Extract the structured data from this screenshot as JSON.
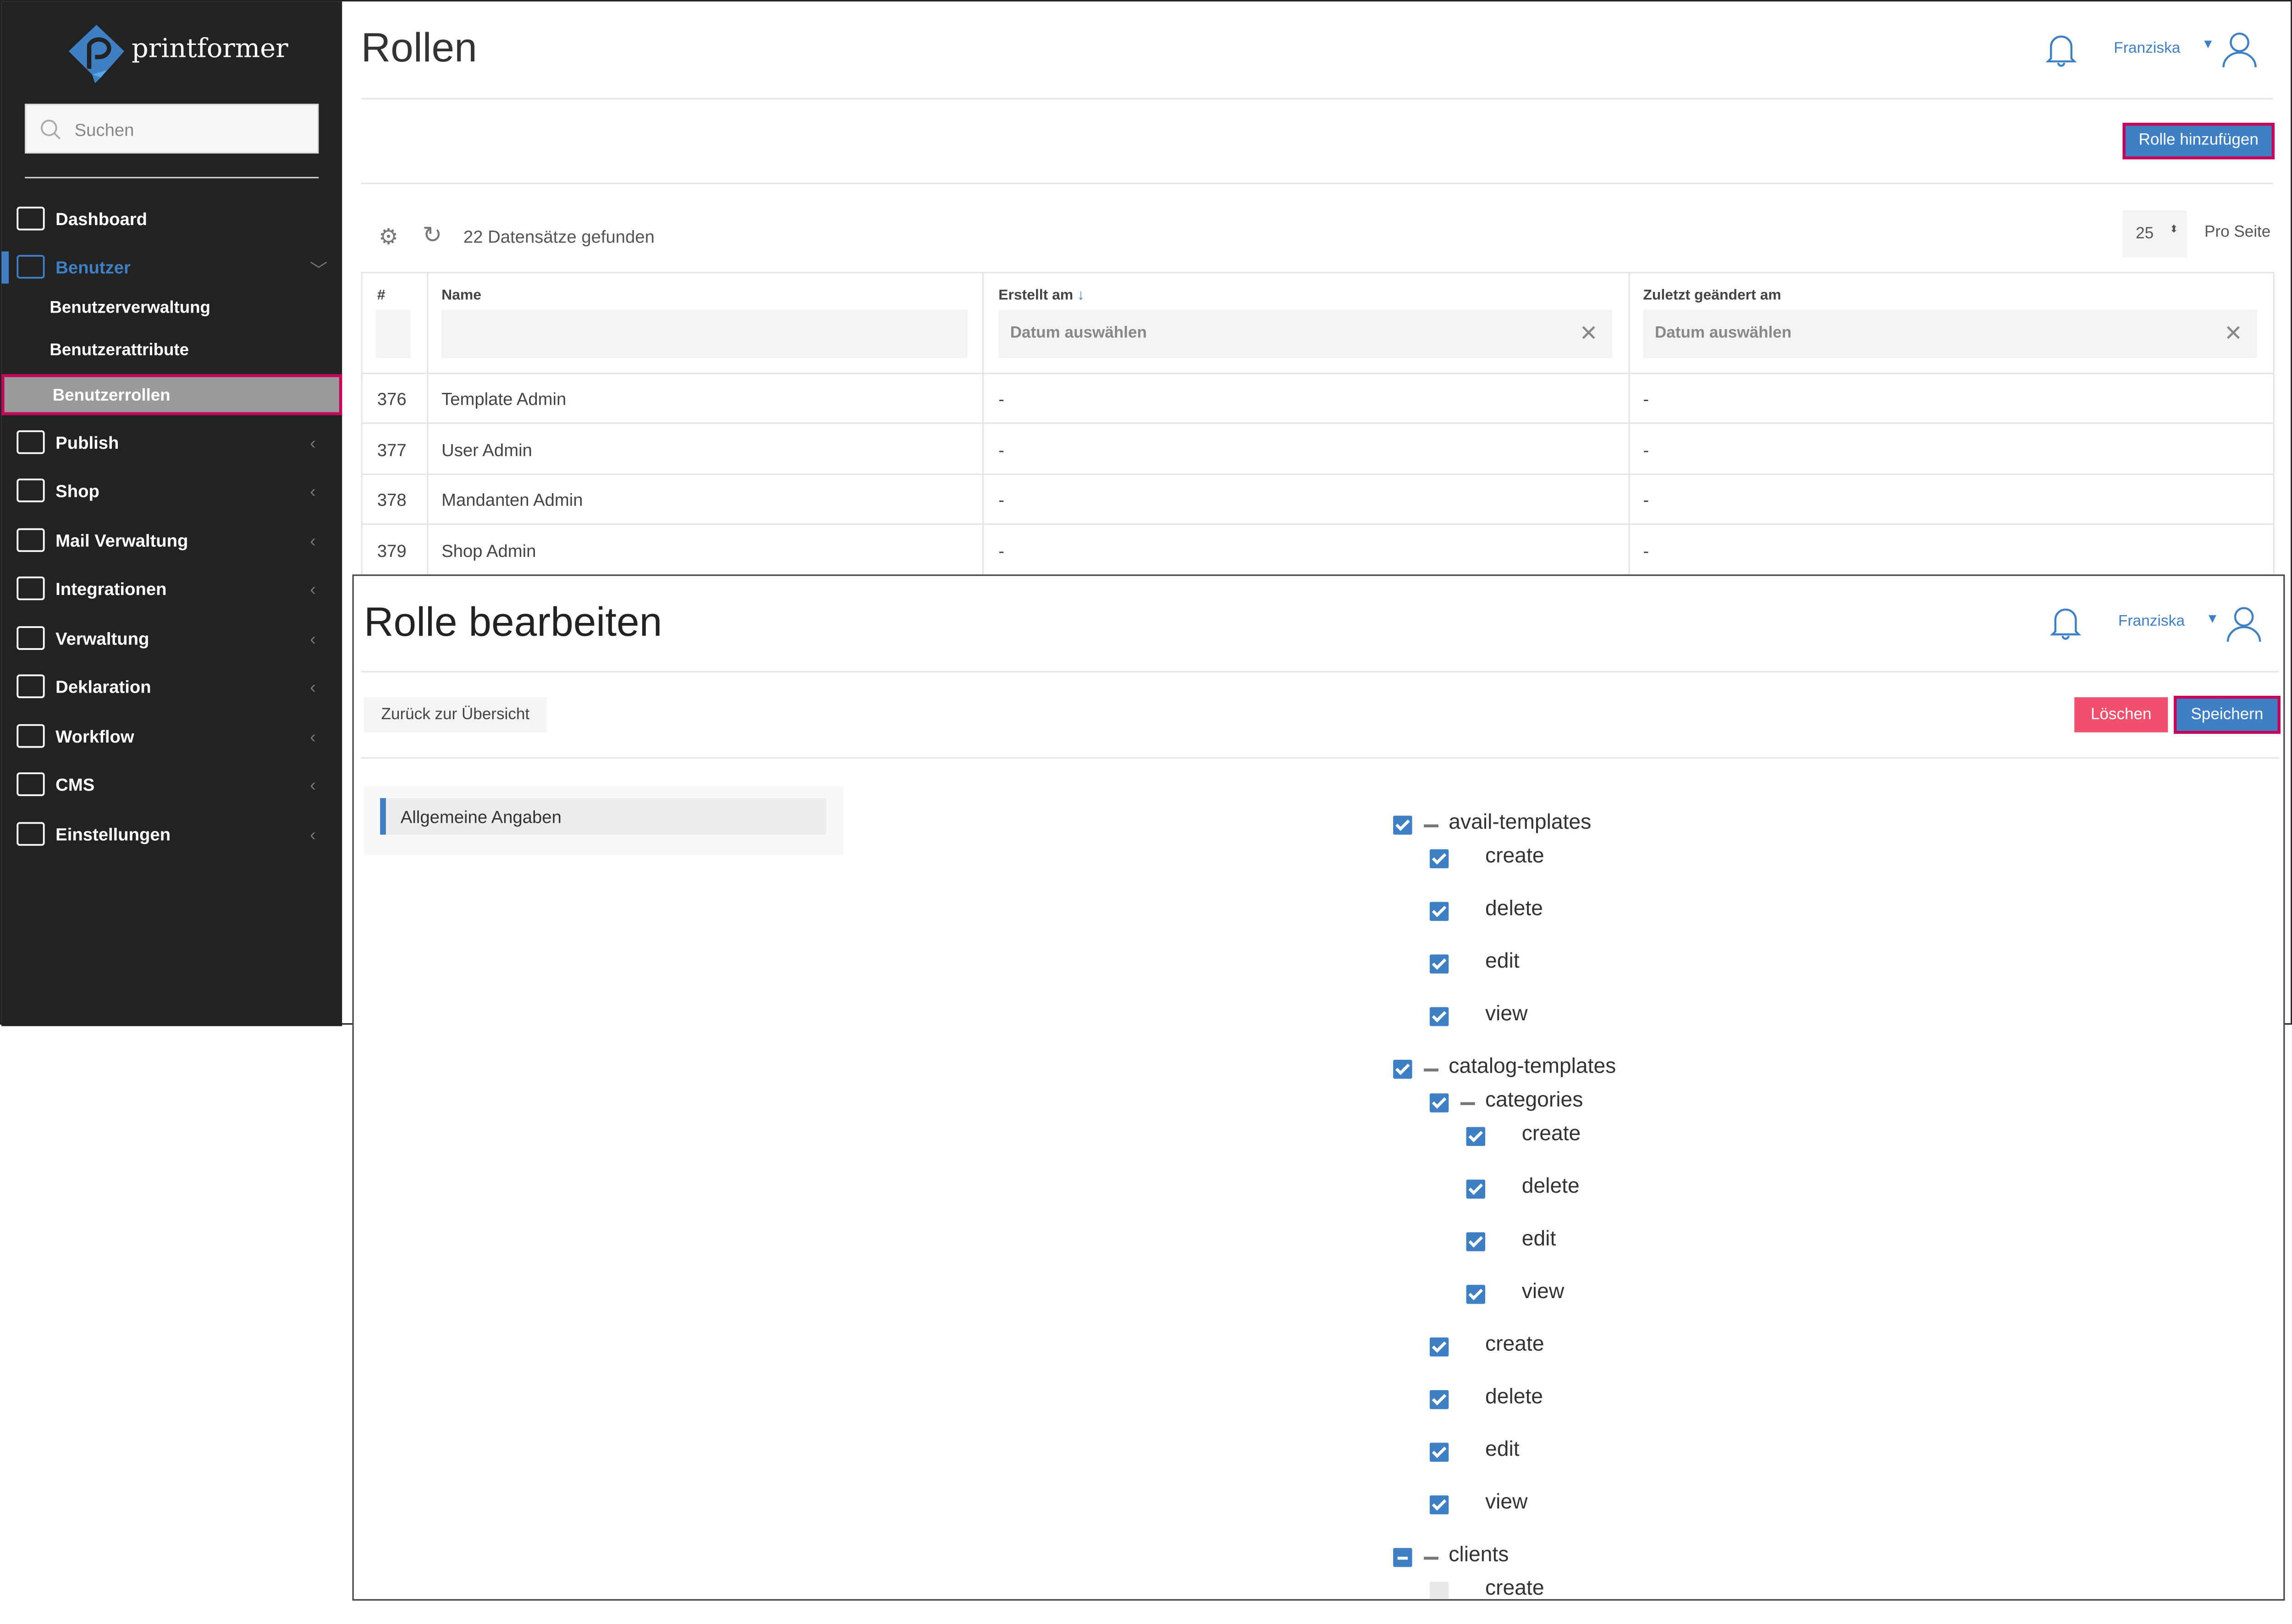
{
  "brand": {
    "name": "printformer",
    "color": "#3f80c4"
  },
  "sidebar": {
    "search_placeholder": "Suchen",
    "items": [
      {
        "label": "Dashboard",
        "icon": "dashboard-monitor-icon"
      },
      {
        "label": "Benutzer",
        "icon": "user-icon",
        "active": true,
        "expanded": true,
        "children": [
          {
            "label": "Benutzerverwaltung"
          },
          {
            "label": "Benutzerattribute"
          },
          {
            "label": "Benutzerrollen",
            "selected": true
          }
        ]
      },
      {
        "label": "Publish",
        "icon": "book-icon"
      },
      {
        "label": "Shop",
        "icon": "shop-icon"
      },
      {
        "label": "Mail Verwaltung",
        "icon": "mail-icon"
      },
      {
        "label": "Integrationen",
        "icon": "cloud-icon"
      },
      {
        "label": "Verwaltung",
        "icon": "network-icon"
      },
      {
        "label": "Deklaration",
        "icon": "document-edit-icon"
      },
      {
        "label": "Workflow",
        "icon": "workflow-icon"
      },
      {
        "label": "CMS",
        "icon": "cms-icon"
      },
      {
        "label": "Einstellungen",
        "icon": "gear-icon"
      }
    ]
  },
  "roles_page": {
    "title": "Rollen",
    "user": "Franziska",
    "add_button": "Rolle hinzufügen",
    "records_found": "22 Datensätze gefunden",
    "per_page_value": "25",
    "per_page_label": "Pro Seite",
    "columns": [
      "#",
      "Name",
      "Erstellt am",
      "Zuletzt geändert am"
    ],
    "date_placeholder": "Datum auswählen",
    "rows": [
      {
        "id": "376",
        "name": "Template Admin",
        "created": "-",
        "modified": "-"
      },
      {
        "id": "377",
        "name": "User Admin",
        "created": "-",
        "modified": "-"
      },
      {
        "id": "378",
        "name": "Mandanten Admin",
        "created": "-",
        "modified": "-"
      },
      {
        "id": "379",
        "name": "Shop Admin",
        "created": "-",
        "modified": "-"
      }
    ]
  },
  "edit_page": {
    "title": "Rolle bearbeiten",
    "user": "Franziska",
    "back_button": "Zurück zur Übersicht",
    "delete_button": "Löschen",
    "save_button": "Speichern",
    "tab": "Allgemeine Angaben",
    "colors": {
      "delete": "#f0506e",
      "save": "#3f80c4",
      "highlight": "#c8005a"
    },
    "tree": [
      {
        "label": "avail-templates",
        "level": 0,
        "state": "checked",
        "parent": true
      },
      {
        "label": "create",
        "level": 1,
        "state": "checked"
      },
      {
        "label": "delete",
        "level": 1,
        "state": "checked"
      },
      {
        "label": "edit",
        "level": 1,
        "state": "checked"
      },
      {
        "label": "view",
        "level": 1,
        "state": "checked"
      },
      {
        "label": "catalog-templates",
        "level": 0,
        "state": "checked",
        "parent": true
      },
      {
        "label": "categories",
        "level": 1,
        "state": "checked",
        "parent": true
      },
      {
        "label": "create",
        "level": 2,
        "state": "checked"
      },
      {
        "label": "delete",
        "level": 2,
        "state": "checked"
      },
      {
        "label": "edit",
        "level": 2,
        "state": "checked"
      },
      {
        "label": "view",
        "level": 2,
        "state": "checked"
      },
      {
        "label": "create",
        "level": 1,
        "state": "checked"
      },
      {
        "label": "delete",
        "level": 1,
        "state": "checked"
      },
      {
        "label": "edit",
        "level": 1,
        "state": "checked"
      },
      {
        "label": "view",
        "level": 1,
        "state": "checked"
      },
      {
        "label": "clients",
        "level": 0,
        "state": "partial",
        "parent": true
      },
      {
        "label": "create",
        "level": 1,
        "state": "unchecked"
      }
    ]
  }
}
